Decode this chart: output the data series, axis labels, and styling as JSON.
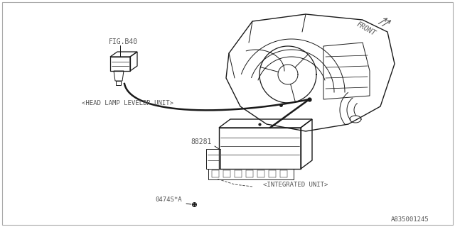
{
  "bg_color": "#ffffff",
  "border_color": "#aaaaaa",
  "line_color": "#1a1a1a",
  "text_color": "#555555",
  "fig_label": "FIG.B40",
  "part_number": "88281",
  "fastener": "0474S*A",
  "label_head_lamp": "<HEAD LAMP LEVELER UNIT>",
  "label_integrated": "<INTEGRATED UNIT>",
  "label_front": "FRONT",
  "diagram_id": "A835001245",
  "dashboard_color": "#1a1a1a",
  "curve_lw": 1.8,
  "thin_lw": 0.7,
  "med_lw": 1.0
}
